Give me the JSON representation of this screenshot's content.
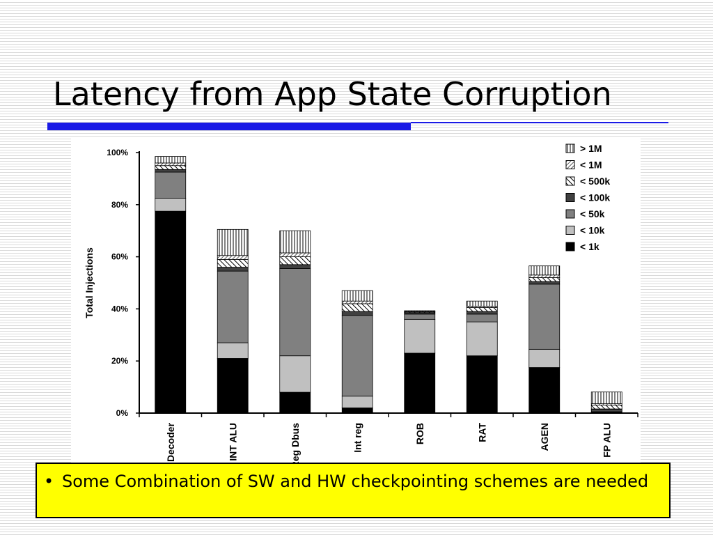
{
  "slide": {
    "title": "Latency from App State Corruption",
    "bullet_symbol": "•",
    "bullet_text": "Some Combination of SW and HW checkpointing schemes are needed"
  },
  "chart_data": {
    "type": "bar",
    "stacked": true,
    "title": "",
    "xlabel": "",
    "ylabel": "Total Injections",
    "ylim": [
      0,
      100
    ],
    "yticks": [
      "0%",
      "20%",
      "40%",
      "60%",
      "80%",
      "100%"
    ],
    "categories": [
      "Decoder",
      "INT ALU",
      "Reg Dbus",
      "Int reg",
      "ROB",
      "RAT",
      "AGEN",
      "FP ALU"
    ],
    "legend_position": "top-right",
    "series": [
      {
        "name": "< 1k",
        "fill": "solid",
        "color": "#000000",
        "values": [
          77.5,
          21,
          8,
          2,
          23,
          22,
          17.5,
          0.5
        ]
      },
      {
        "name": "< 10k",
        "fill": "solid",
        "color": "#c0c0c0",
        "values": [
          5,
          6,
          14,
          4.5,
          13,
          13,
          7,
          0.3
        ]
      },
      {
        "name": "< 50k",
        "fill": "solid",
        "color": "#808080",
        "values": [
          10,
          27.5,
          33.5,
          31,
          2,
          3,
          25,
          0.5
        ]
      },
      {
        "name": "< 100k",
        "fill": "solid",
        "color": "#404040",
        "values": [
          1,
          1.5,
          1.5,
          1.5,
          0.5,
          1,
          1,
          0.3
        ]
      },
      {
        "name": "< 500k",
        "fill": "diag",
        "color": "#000000",
        "values": [
          1.5,
          3,
          3,
          3,
          0.3,
          1.5,
          1.5,
          1.5
        ]
      },
      {
        "name": "< 1M",
        "fill": "cross",
        "color": "#000000",
        "values": [
          1,
          1.5,
          1.5,
          1,
          0.2,
          0.5,
          1,
          0.5
        ]
      },
      {
        "name": "> 1M",
        "fill": "vert",
        "color": "#000000",
        "values": [
          2.5,
          10,
          8.5,
          4,
          0.3,
          2,
          3.5,
          4.5
        ]
      }
    ]
  }
}
